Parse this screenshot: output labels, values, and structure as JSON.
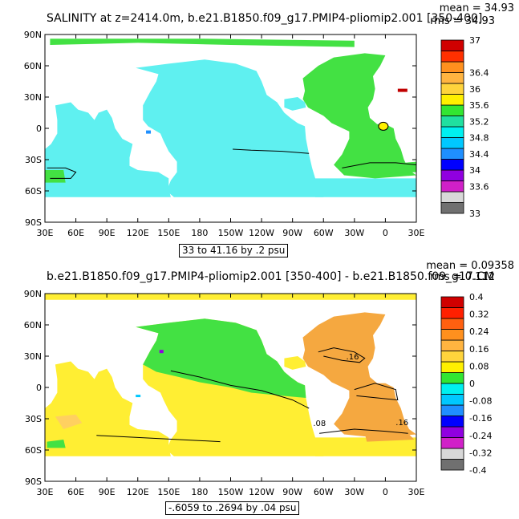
{
  "chart_data": [
    {
      "type": "heatmap",
      "title": "SALINITY at z=2414.0m, b.e21.B1850.f09_g17.PMIP4-pliomip2.001 [350-400]",
      "stats": {
        "mean_label": "mean = 34.93",
        "rms_label": "rms = 34.93"
      },
      "x_ticks": [
        "30E",
        "60E",
        "90E",
        "120E",
        "150E",
        "180",
        "150W",
        "120W",
        "90W",
        "60W",
        "30W",
        "0",
        "30E"
      ],
      "y_ticks": [
        "90N",
        "60N",
        "30N",
        "0",
        "30S",
        "60S",
        "90S"
      ],
      "xlim": [
        30,
        390
      ],
      "ylim": [
        -90,
        90
      ],
      "contour_info": "33 to 41.16 by .2 psu",
      "colorbar": {
        "colors": [
          "#707070",
          "#d8d8d8",
          "#d020c8",
          "#9000e0",
          "#0000ff",
          "#1f8fff",
          "#00c8ff",
          "#00f0f0",
          "#20e0a0",
          "#32e632",
          "#fff000",
          "#ffd43c",
          "#ffb440",
          "#ff901e",
          "#ff3000",
          "#d00000"
        ],
        "labels": [
          "33",
          "33.6",
          "34",
          "34.4",
          "34.8",
          "35.2",
          "35.6",
          "36",
          "36.4",
          "37"
        ]
      }
    },
    {
      "type": "heatmap",
      "title": "b.e21.B1850.f09_g17.PMIP4-pliomip2.001 [350-400] - b.e21.B1850.f09_g17.CM",
      "stats": {
        "mean_label": "mean = 0.09358",
        "rms_label": "rms = 0.112"
      },
      "x_ticks": [
        "30E",
        "60E",
        "90E",
        "120E",
        "150E",
        "180",
        "150W",
        "120W",
        "90W",
        "60W",
        "30W",
        "0",
        "30E"
      ],
      "y_ticks": [
        "90N",
        "60N",
        "30N",
        "0",
        "30S",
        "60S",
        "90S"
      ],
      "xlim": [
        30,
        390
      ],
      "ylim": [
        -90,
        90
      ],
      "contour_info": "-.6059 to .2694 by .04 psu",
      "contour_labels": [
        ".16",
        ".08",
        ".16"
      ],
      "colorbar": {
        "colors": [
          "#707070",
          "#d8d8d8",
          "#d020c8",
          "#9000e0",
          "#0000ff",
          "#1f8fff",
          "#00c8ff",
          "#00f0f0",
          "#32e632",
          "#fff000",
          "#ffd43c",
          "#ffb440",
          "#ff901e",
          "#ff6010",
          "#ff2000",
          "#d00000"
        ],
        "labels": [
          "-0.4",
          "-0.32",
          "-0.24",
          "-0.16",
          "-0.08",
          "0",
          "0.08",
          "0.16",
          "0.24",
          "0.32",
          "0.4"
        ]
      }
    }
  ]
}
